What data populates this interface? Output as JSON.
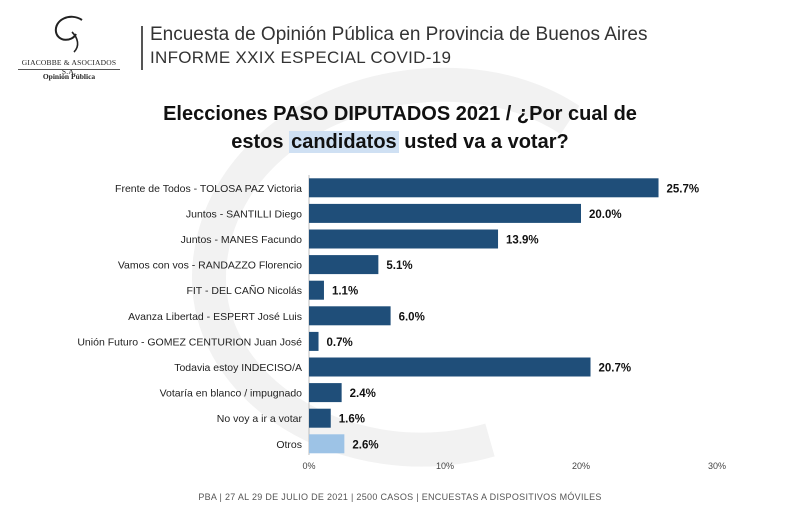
{
  "header": {
    "company": "GIACOBBE & ASOCIADOS S.A.",
    "company_sub": "Opinión Pública",
    "title": "Encuesta de Opinión Pública en Provincia de Buenos Aires",
    "subtitle": "INFORME XXIX ESPECIAL COVID-19"
  },
  "question": {
    "line1": "Elecciones PASO DIPUTADOS 2021 / ¿Por cual de",
    "line2_pre": "estos ",
    "line2_highlight": "candidatos",
    "line2_post": " usted va a votar?"
  },
  "footer": "PBA | 27 AL 29 DE JULIO DE 2021 | 2500 CASOS | ENCUESTAS A DISPOSITIVOS MÓVILES",
  "colors": {
    "bar": "#1f4e79",
    "bar_highlight": "#9dc3e6"
  },
  "chart_data": {
    "type": "bar",
    "orientation": "horizontal",
    "title": "Elecciones PASO DIPUTADOS 2021 / ¿Por cual de estos candidatos usted va a votar?",
    "categories": [
      "Frente de Todos - TOLOSA PAZ Victoria",
      "Juntos - SANTILLI Diego",
      "Juntos - MANES Facundo",
      "Vamos con vos - RANDAZZO Florencio",
      "FIT - DEL CAÑO Nicolás",
      "Avanza Libertad - ESPERT José Luis",
      "Unión Futuro - GOMEZ CENTURION Juan José",
      "Todavia estoy INDECISO/A",
      "Votaría en blanco / impugnado",
      "No voy a ir a votar",
      "Otros"
    ],
    "values": [
      25.7,
      20.0,
      13.9,
      5.1,
      1.1,
      6.0,
      0.7,
      20.7,
      2.4,
      1.6,
      2.6
    ],
    "value_labels": [
      "25.7%",
      "20.0%",
      "13.9%",
      "5.1%",
      "1.1%",
      "6.0%",
      "0.7%",
      "20.7%",
      "2.4%",
      "1.6%",
      "2.6%"
    ],
    "highlight_index": 10,
    "xlim": [
      0,
      30
    ],
    "xticks": [
      0,
      10,
      20,
      30
    ],
    "xtick_labels": [
      "0%",
      "10%",
      "20%",
      "30%"
    ],
    "xlabel": "",
    "ylabel": "",
    "grid": false
  }
}
